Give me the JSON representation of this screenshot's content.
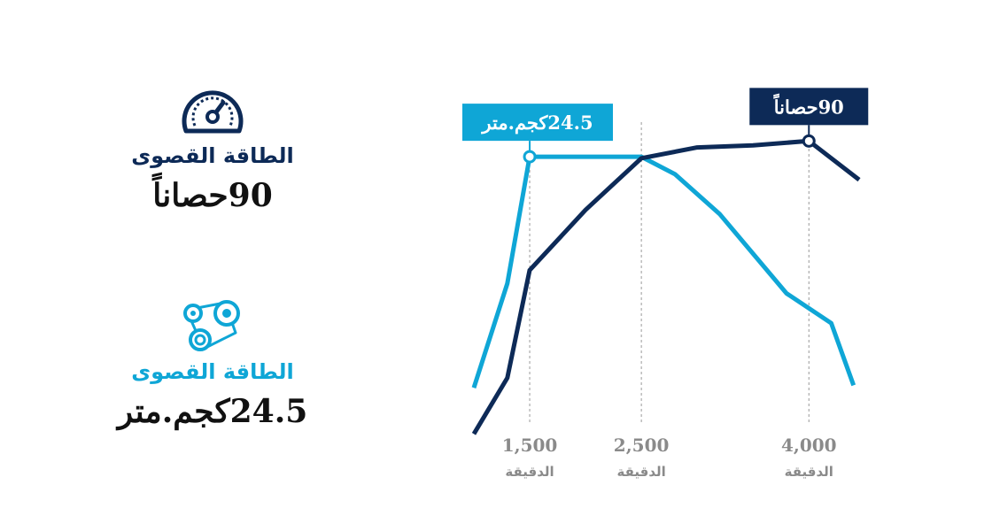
{
  "colors": {
    "navy": "#0d2a57",
    "cyan": "#0fa6d6",
    "guide": "#9a9a9a"
  },
  "stats": [
    {
      "icon": "speedometer-icon",
      "label": "الطاقة القصوى",
      "value": "90حصاناً",
      "color": "#0d2a57"
    },
    {
      "icon": "belt-pulley-icon",
      "label": "الطاقة القصوى",
      "value": "24.5كجم.متر",
      "color": "#0fa6d6"
    }
  ],
  "chart_data": {
    "type": "line",
    "x_ticks": [
      {
        "value": 1500,
        "label": "1,500",
        "unit": "الدقيقة"
      },
      {
        "value": 2500,
        "label": "2,500",
        "unit": "الدقيقة"
      },
      {
        "value": 4000,
        "label": "4,000",
        "unit": "الدقيقة"
      }
    ],
    "xlim": [
      1000,
      4450
    ],
    "series": [
      {
        "key": "torque",
        "color": "#0fa6d6",
        "ylim": [
          13,
          26
        ],
        "points": [
          [
            1000,
            15.2
          ],
          [
            1300,
            19.4
          ],
          [
            1500,
            24.5
          ],
          [
            2000,
            24.5
          ],
          [
            2500,
            24.5
          ],
          [
            2800,
            23.8
          ],
          [
            3200,
            22.2
          ],
          [
            3500,
            20.6
          ],
          [
            3800,
            19.0
          ],
          [
            4200,
            17.8
          ],
          [
            4400,
            15.3
          ]
        ],
        "peak": {
          "x": 1500,
          "y": 24.5,
          "callout": "24.5كجم.متر"
        }
      },
      {
        "key": "power",
        "color": "#0d2a57",
        "ylim": [
          20,
          95
        ],
        "points": [
          [
            1000,
            22
          ],
          [
            1300,
            35
          ],
          [
            1500,
            60
          ],
          [
            2000,
            74
          ],
          [
            2500,
            86
          ],
          [
            3000,
            88.5
          ],
          [
            3500,
            89
          ],
          [
            4000,
            90
          ],
          [
            4450,
            81
          ]
        ],
        "peak": {
          "x": 4000,
          "y": 90,
          "callout": "90حصاناً"
        }
      }
    ]
  }
}
